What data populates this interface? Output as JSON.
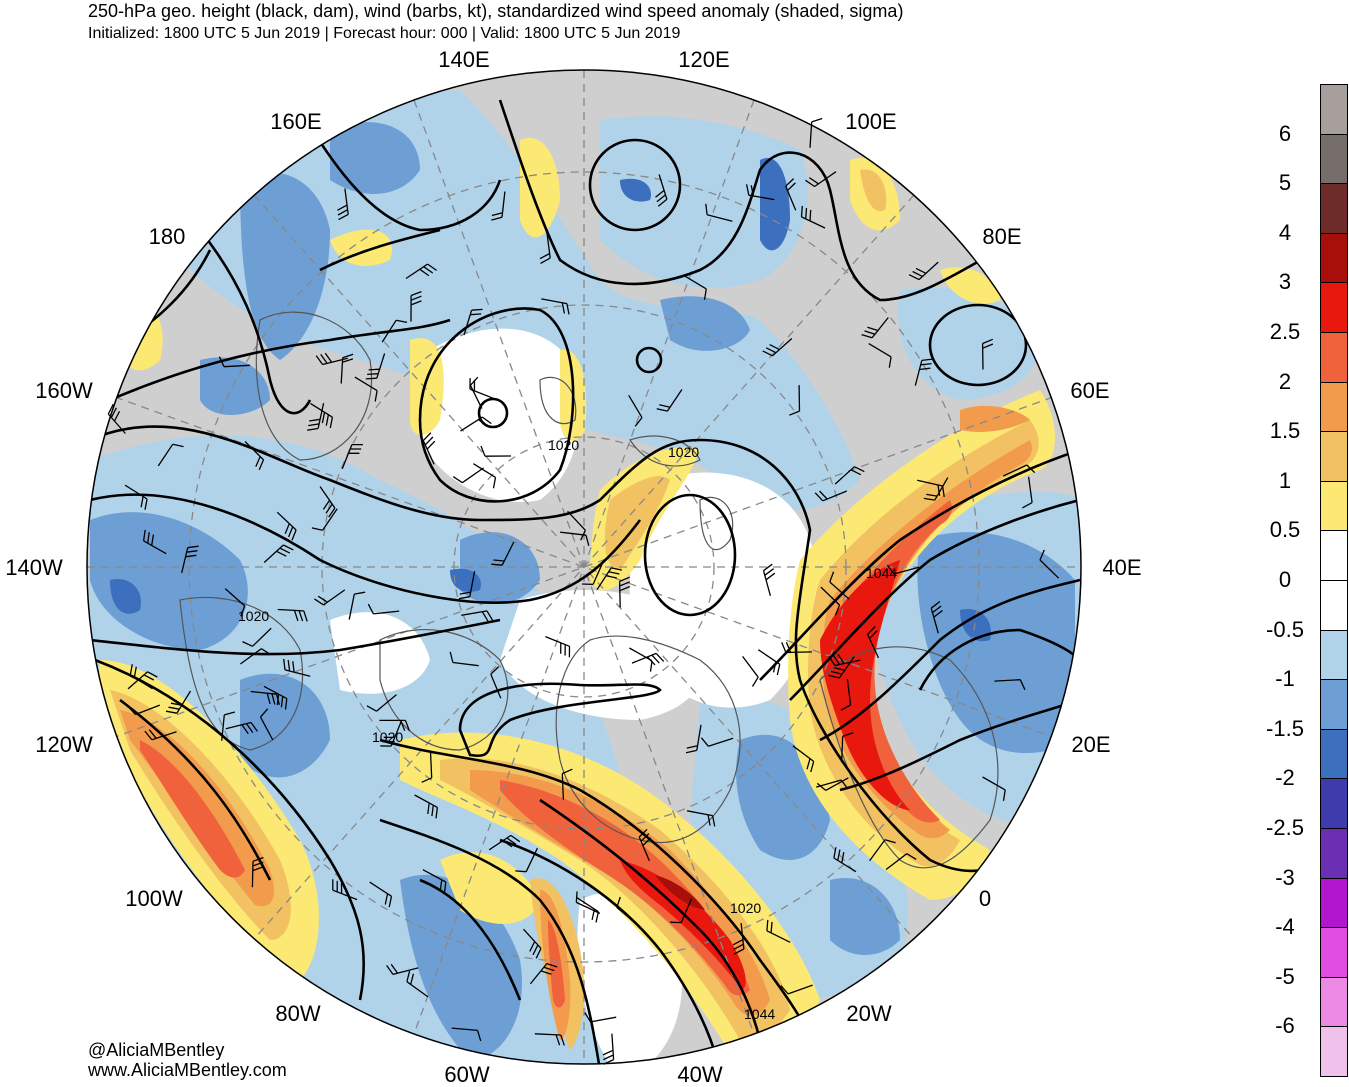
{
  "header": {
    "title": "250-hPa geo. height (black, dam), wind (barbs, kt), standardized wind speed anomaly (shaded, sigma)",
    "subtitle": "Initialized: 1800 UTC 5 Jun 2019 | Forecast hour: 000 | Valid: 1800 UTC 5 Jun 2019"
  },
  "credits": {
    "twitter": "@AliciaMBentley",
    "website": "www.AliciaMBentley.com"
  },
  "longitude_labels": [
    "140E",
    "120E",
    "160E",
    "100E",
    "180",
    "80E",
    "160W",
    "60E",
    "140W",
    "40E",
    "120W",
    "20E",
    "100W",
    "0",
    "80W",
    "20W",
    "60W",
    "40W"
  ],
  "contour_labels": [
    "1020",
    "1020",
    "1044",
    "1020",
    "1020",
    "1020",
    "1044"
  ],
  "colorbar": {
    "labels": [
      "6",
      "5",
      "4",
      "3",
      "2.5",
      "2",
      "1.5",
      "1",
      "0.5",
      "0",
      "-0.5",
      "-1",
      "-1.5",
      "-2",
      "-2.5",
      "-3",
      "-4",
      "-5",
      "-6"
    ],
    "colors": [
      "#a69f9c",
      "#766e6b",
      "#6d2b29",
      "#a80f0b",
      "#e8180f",
      "#f0623b",
      "#f29b4d",
      "#f2c262",
      "#fbe974",
      "#ffffff",
      "#ffffff",
      "#b1d3ea",
      "#6d9fd5",
      "#3c6fbe",
      "#3e3cad",
      "#6a2fb3",
      "#b116ce",
      "#e14de0",
      "#ec89e4",
      "#f0c1ea"
    ]
  },
  "map_colors": {
    "grey": "#cfcfcf",
    "light_blue": "#b1d3ea",
    "mid_blue": "#6d9fd5",
    "dark_blue": "#3c6fbe",
    "yellow": "#fbe974",
    "light_orange": "#f2c262",
    "orange": "#f29b4d",
    "red_orange": "#f0623b",
    "red": "#e8180f",
    "dark_red": "#a80f0b"
  }
}
